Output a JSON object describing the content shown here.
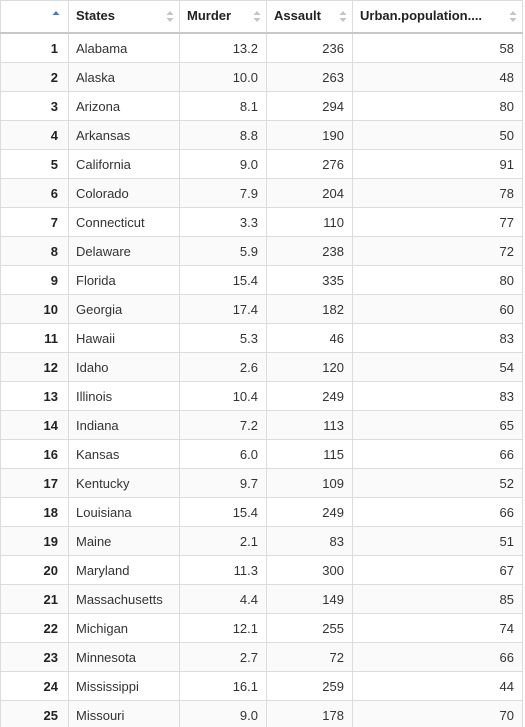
{
  "table": {
    "columns": [
      {
        "label": "",
        "sort_icon": "sort-asc-icon"
      },
      {
        "label": "States",
        "sort_icon": "sort-icon"
      },
      {
        "label": "Murder",
        "sort_icon": "sort-icon"
      },
      {
        "label": "Assault",
        "sort_icon": "sort-icon"
      },
      {
        "label": "Urban.population....",
        "sort_icon": "sort-icon"
      }
    ],
    "rows": [
      {
        "id": "1",
        "state": "Alabama",
        "murder": "13.2",
        "assault": "236",
        "urban": "58"
      },
      {
        "id": "2",
        "state": "Alaska",
        "murder": "10.0",
        "assault": "263",
        "urban": "48"
      },
      {
        "id": "3",
        "state": "Arizona",
        "murder": "8.1",
        "assault": "294",
        "urban": "80"
      },
      {
        "id": "4",
        "state": "Arkansas",
        "murder": "8.8",
        "assault": "190",
        "urban": "50"
      },
      {
        "id": "5",
        "state": "California",
        "murder": "9.0",
        "assault": "276",
        "urban": "91"
      },
      {
        "id": "6",
        "state": "Colorado",
        "murder": "7.9",
        "assault": "204",
        "urban": "78"
      },
      {
        "id": "7",
        "state": "Connecticut",
        "murder": "3.3",
        "assault": "110",
        "urban": "77"
      },
      {
        "id": "8",
        "state": "Delaware",
        "murder": "5.9",
        "assault": "238",
        "urban": "72"
      },
      {
        "id": "9",
        "state": "Florida",
        "murder": "15.4",
        "assault": "335",
        "urban": "80"
      },
      {
        "id": "10",
        "state": "Georgia",
        "murder": "17.4",
        "assault": "182",
        "urban": "60"
      },
      {
        "id": "11",
        "state": "Hawaii",
        "murder": "5.3",
        "assault": "46",
        "urban": "83"
      },
      {
        "id": "12",
        "state": "Idaho",
        "murder": "2.6",
        "assault": "120",
        "urban": "54"
      },
      {
        "id": "13",
        "state": "Illinois",
        "murder": "10.4",
        "assault": "249",
        "urban": "83"
      },
      {
        "id": "14",
        "state": "Indiana",
        "murder": "7.2",
        "assault": "113",
        "urban": "65"
      },
      {
        "id": "16",
        "state": "Kansas",
        "murder": "6.0",
        "assault": "115",
        "urban": "66"
      },
      {
        "id": "17",
        "state": "Kentucky",
        "murder": "9.7",
        "assault": "109",
        "urban": "52"
      },
      {
        "id": "18",
        "state": "Louisiana",
        "murder": "15.4",
        "assault": "249",
        "urban": "66"
      },
      {
        "id": "19",
        "state": "Maine",
        "murder": "2.1",
        "assault": "83",
        "urban": "51"
      },
      {
        "id": "20",
        "state": "Maryland",
        "murder": "11.3",
        "assault": "300",
        "urban": "67"
      },
      {
        "id": "21",
        "state": "Massachusetts",
        "murder": "4.4",
        "assault": "149",
        "urban": "85"
      },
      {
        "id": "22",
        "state": "Michigan",
        "murder": "12.1",
        "assault": "255",
        "urban": "74"
      },
      {
        "id": "23",
        "state": "Minnesota",
        "murder": "2.7",
        "assault": "72",
        "urban": "66"
      },
      {
        "id": "24",
        "state": "Mississippi",
        "murder": "16.1",
        "assault": "259",
        "urban": "44"
      },
      {
        "id": "25",
        "state": "Missouri",
        "murder": "9.0",
        "assault": "178",
        "urban": "70"
      }
    ]
  },
  "colors": {
    "border": "#dcdcdc",
    "sort_active": "#3c7fc4",
    "sort_inactive": "#c4c4c4"
  }
}
